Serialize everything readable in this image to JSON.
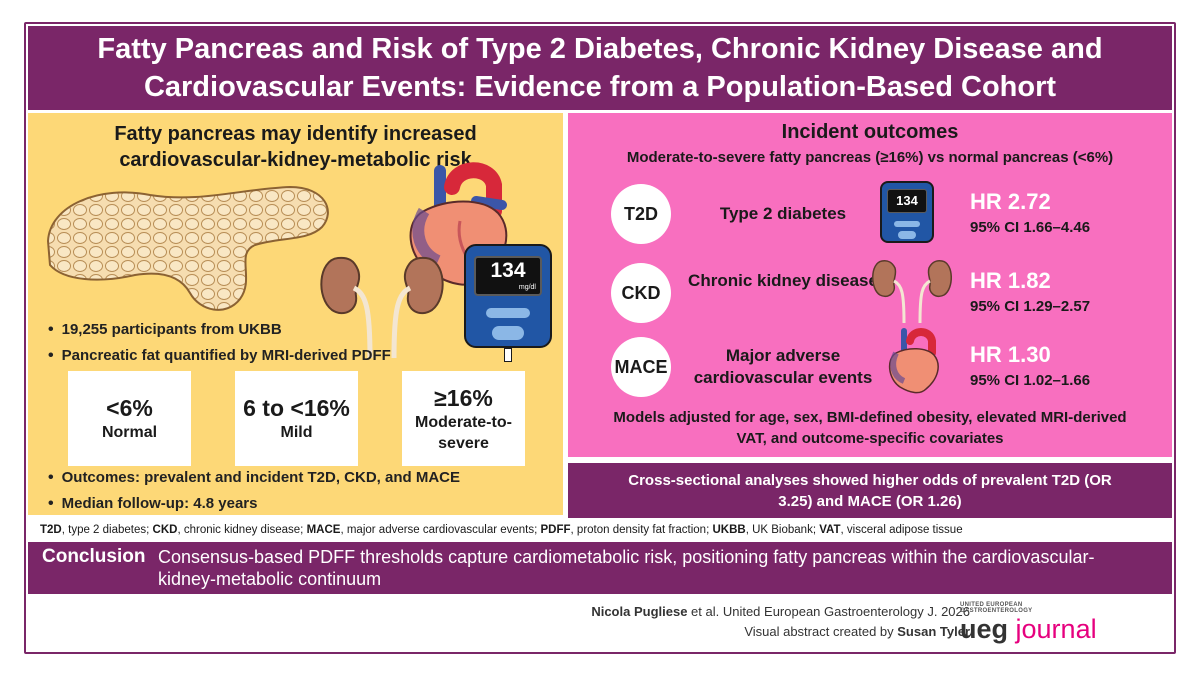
{
  "title": "Fatty Pancreas and Risk of Type 2 Diabetes, Chronic Kidney Disease and Cardiovascular Events: Evidence from a Population-Based Cohort",
  "left": {
    "heading": "Fatty pancreas may identify increased cardiovascular-kidney-metabolic risk",
    "bullets_top": [
      "19,255 participants from UKBB",
      "Pancreatic fat quantified by MRI-derived PDFF"
    ],
    "categories": [
      {
        "value": "<6%",
        "label": "Normal"
      },
      {
        "value": "6 to <16%",
        "label": "Mild"
      },
      {
        "value": "≥16%",
        "label": "Moderate-to-severe"
      }
    ],
    "bullets_bottom": [
      "Outcomes: prevalent and incident T2D, CKD, and MACE",
      "Median follow-up: 4.8 years"
    ],
    "meter_reading": "134",
    "meter_unit": "mg/dl"
  },
  "right": {
    "heading": "Incident outcomes",
    "subheading": "Moderate-to-severe fatty pancreas (≥16%) vs normal pancreas (<6%)",
    "outcomes": [
      {
        "abbr": "T2D",
        "name": "Type 2 diabetes",
        "hr": "HR 2.72",
        "ci": "95% CI 1.66–4.46"
      },
      {
        "abbr": "CKD",
        "name": "Chronic kidney disease",
        "hr": "HR 1.82",
        "ci": "95% CI 1.29–2.57"
      },
      {
        "abbr": "MACE",
        "name": "Major adverse cardiovascular events",
        "hr": "HR 1.30",
        "ci": "95% CI 1.02–1.66"
      }
    ],
    "models_note": "Models adjusted for age, sex, BMI-defined obesity, elevated MRI-derived VAT, and outcome-specific covariates"
  },
  "cross_sectional": "Cross-sectional analyses showed higher odds of prevalent T2D (OR 3.25) and MACE (OR 1.26)",
  "abbreviations": [
    {
      "term": "T2D",
      "def": ", type 2 diabetes; "
    },
    {
      "term": "CKD",
      "def": ", chronic kidney disease; "
    },
    {
      "term": "MACE",
      "def": ", major adverse cardiovascular events; "
    },
    {
      "term": "PDFF",
      "def": ", proton density fat fraction; "
    },
    {
      "term": "UKBB",
      "def": ", UK Biobank; "
    },
    {
      "term": "VAT",
      "def": ", visceral adipose tissue"
    }
  ],
  "conclusion": {
    "label": "Conclusion",
    "text": "Consensus-based PDFF thresholds capture cardiometabolic risk, positioning fatty pancreas within the cardiovascular-kidney-metabolic continuum"
  },
  "credit": {
    "author": "Nicola Pugliese",
    "citation": " et al. United European Gastroenterology J. 2026",
    "created_prefix": "Visual abstract created by ",
    "creator": "Susan Tyler"
  },
  "logo": {
    "line1": "UNITED EUROPEAN",
    "line2": "GASTROENTEROLOGY",
    "word1": "ueg",
    "word2": "journal"
  },
  "colors": {
    "purple": "#7a2668",
    "yellow": "#fdd877",
    "pink": "#f86fbf",
    "magenta": "#e6007e"
  }
}
